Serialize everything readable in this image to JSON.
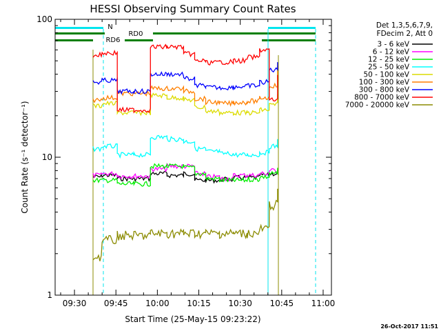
{
  "chart_data": {
    "type": "line",
    "title": "HESSI Observing Summary Count Rates",
    "xlabel": "Start Time (25-May-15 09:23:22)",
    "ylabel": "Count Rate (s⁻¹ detector⁻¹)",
    "y_scale": "log",
    "ylim": [
      1,
      100
    ],
    "xlim": [
      "09:23",
      "11:03"
    ],
    "x_ticks": [
      "09:30",
      "09:45",
      "10:00",
      "10:15",
      "10:30",
      "10:45",
      "11:00"
    ],
    "y_ticks": [
      "1",
      "10",
      "100"
    ],
    "legend_position": "top-right",
    "legend_header": [
      "Det 1,3,5,6,7,9,",
      "FDecim 2, Att 0"
    ],
    "footer_stamp": "26-Oct-2017 11:51",
    "annotations": [
      {
        "text": "N",
        "color": "#00e5ee"
      },
      {
        "text": "RD0",
        "color": "#007f00"
      },
      {
        "text": "RD6",
        "color": "#007f00"
      }
    ],
    "x": [
      "09:37",
      "09:43",
      "09:48",
      "09:55",
      "10:00",
      "10:07",
      "10:12",
      "10:15",
      "10:20",
      "10:25",
      "10:30",
      "10:35",
      "10:39",
      "10:42",
      "10:45"
    ],
    "series": [
      {
        "name": "3 - 6 keV",
        "color": "#000000",
        "values": [
          7.2,
          7.4,
          7.0,
          7.0,
          7.6,
          7.4,
          7.6,
          6.8,
          6.8,
          6.9,
          7.1,
          7.1,
          7.4,
          7.6,
          8.0
        ]
      },
      {
        "name": "6 - 12 keV",
        "color": "#ff00ff",
        "values": [
          7.4,
          7.6,
          7.3,
          7.3,
          8.2,
          8.6,
          8.6,
          7.6,
          7.2,
          7.0,
          7.4,
          7.4,
          7.6,
          8.0,
          8.4
        ]
      },
      {
        "name": "12 - 25 keV",
        "color": "#00ee00",
        "values": [
          6.8,
          6.8,
          6.4,
          6.4,
          8.6,
          8.6,
          8.4,
          7.6,
          7.0,
          6.8,
          6.8,
          6.9,
          7.2,
          7.6,
          8.2
        ]
      },
      {
        "name": "25 - 50 keV",
        "color": "#00ffff",
        "values": [
          11.5,
          12.0,
          10.4,
          10.4,
          14.0,
          13.5,
          13.0,
          11.5,
          11.0,
          10.6,
          10.4,
          10.4,
          10.8,
          12.0,
          14.0
        ]
      },
      {
        "name": "50 - 100 keV",
        "color": "#dcdc00",
        "values": [
          23.5,
          24.5,
          21.0,
          21.0,
          28.0,
          27.0,
          26.0,
          23.0,
          21.5,
          21.0,
          21.0,
          21.0,
          22.0,
          24.0,
          28.0
        ]
      },
      {
        "name": "100 - 300 keV",
        "color": "#ff7f00",
        "values": [
          26.0,
          27.0,
          29.0,
          29.0,
          31.5,
          31.5,
          30.0,
          26.5,
          25.0,
          24.5,
          25.0,
          25.5,
          27.0,
          33.0,
          45.0
        ]
      },
      {
        "name": "300 - 800 keV",
        "color": "#0000ff",
        "values": [
          35.0,
          36.0,
          30.0,
          30.0,
          40.0,
          40.0,
          37.0,
          33.0,
          32.0,
          32.0,
          32.5,
          33.0,
          35.0,
          43.0,
          50.0
        ]
      },
      {
        "name": "800 - 7000 keV",
        "color": "#ff0000",
        "values": [
          55.0,
          57.0,
          22.0,
          22.0,
          63.0,
          63.0,
          56.0,
          50.0,
          48.5,
          49.0,
          50.0,
          53.0,
          60.0,
          26.0,
          38.0
        ]
      },
      {
        "name": "7000 - 20000 keV",
        "color": "#8b8b00",
        "values": [
          1.9,
          2.5,
          2.7,
          2.7,
          2.8,
          2.8,
          2.8,
          2.8,
          2.8,
          2.8,
          2.8,
          2.8,
          3.0,
          4.5,
          6.0
        ]
      }
    ]
  }
}
